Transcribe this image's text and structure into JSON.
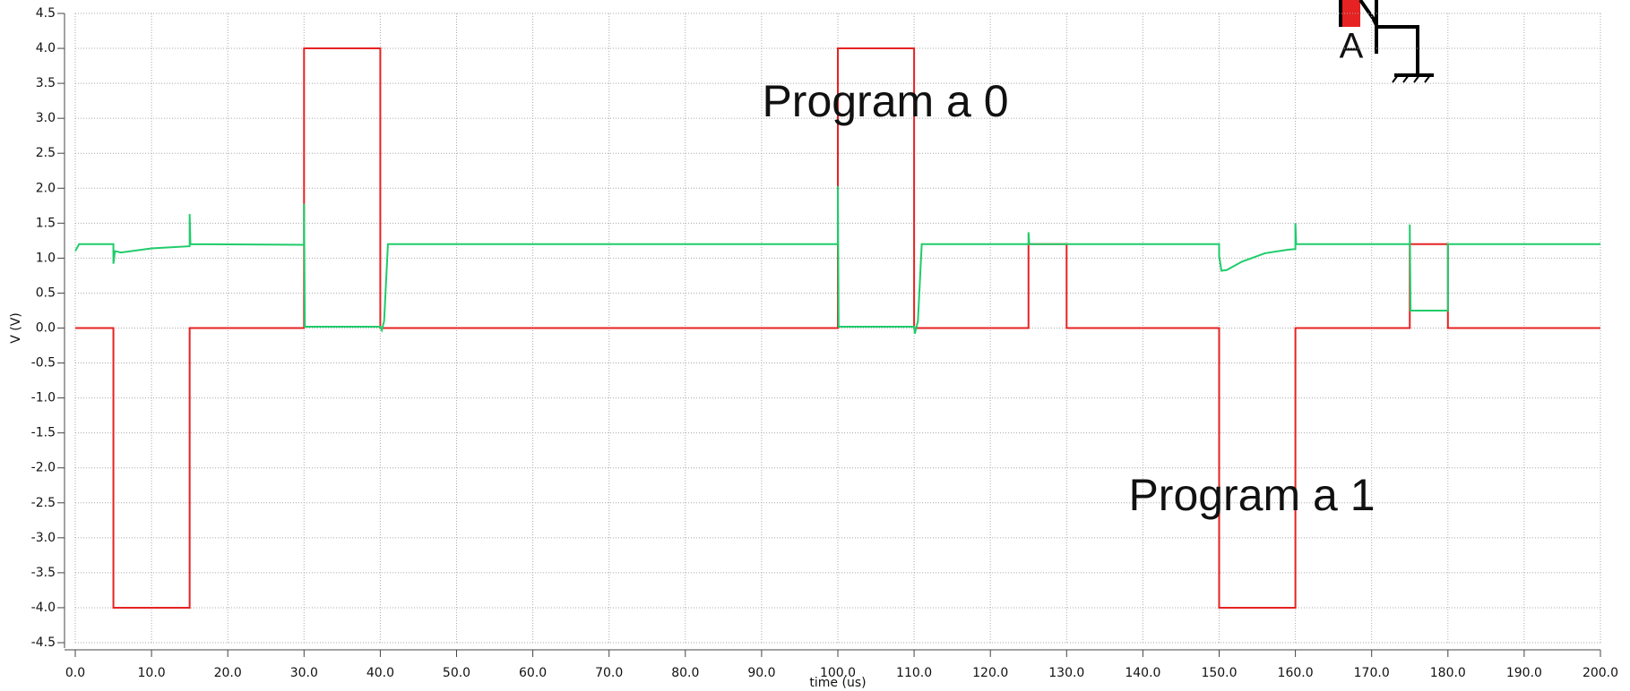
{
  "chart_data": {
    "type": "line",
    "x_label": "time (us)",
    "y_label": "V (V)",
    "annotations": [
      "Program a 0",
      "Program a 1"
    ],
    "icon_label": "A",
    "xlim": [
      0,
      200
    ],
    "ylim": [
      -4.5,
      4.5
    ],
    "grid": true,
    "xticks": [
      {
        "value": 0,
        "label": "0.0"
      },
      {
        "value": 10,
        "label": "10.0"
      },
      {
        "value": 20,
        "label": "20.0"
      },
      {
        "value": 30,
        "label": "30.0"
      },
      {
        "value": 40,
        "label": "40.0"
      },
      {
        "value": 50,
        "label": "50.0"
      },
      {
        "value": 60,
        "label": "60.0"
      },
      {
        "value": 70,
        "label": "70.0"
      },
      {
        "value": 80,
        "label": "80.0"
      },
      {
        "value": 90,
        "label": "90.0"
      },
      {
        "value": 100,
        "label": "100.0"
      },
      {
        "value": 110,
        "label": "110.0"
      },
      {
        "value": 120,
        "label": "120.0"
      },
      {
        "value": 130,
        "label": "130.0"
      },
      {
        "value": 140,
        "label": "140.0"
      },
      {
        "value": 150,
        "label": "150.0"
      },
      {
        "value": 160,
        "label": "160.0"
      },
      {
        "value": 170,
        "label": "170.0"
      },
      {
        "value": 180,
        "label": "180.0"
      },
      {
        "value": 190,
        "label": "190.0"
      },
      {
        "value": 200,
        "label": "200.0"
      }
    ],
    "yticks": [
      4.5,
      {
        "value": 4,
        "label": "4.0"
      },
      3.5,
      {
        "value": 3,
        "label": "3.0"
      },
      2.5,
      {
        "value": 2,
        "label": "2.0"
      },
      1.5,
      {
        "value": 1,
        "label": "1.0"
      },
      0.5,
      {
        "value": 0,
        "label": "0.0"
      },
      -0.5,
      {
        "value": -1,
        "label": "-1.0"
      },
      -1.5,
      {
        "value": -2,
        "label": "-2.0"
      },
      -2.5,
      {
        "value": -3,
        "label": "-3.0"
      },
      -3.5,
      {
        "value": -4,
        "label": "-4.0"
      },
      -4.5
    ],
    "series": [
      {
        "color": "#e62222",
        "x": [
          0,
          5,
          5,
          15,
          15,
          30,
          30,
          40,
          40,
          100,
          100,
          110,
          110,
          125,
          125,
          130,
          130,
          150,
          150,
          160,
          160,
          175,
          175,
          180,
          180,
          200
        ],
        "values": [
          0,
          0,
          -4,
          -4,
          0,
          0,
          4,
          4,
          0,
          0,
          4,
          4,
          0,
          0,
          1.2,
          1.2,
          0,
          0,
          -4,
          -4,
          0,
          0,
          1.2,
          1.2,
          0,
          0
        ]
      },
      {
        "color": "#1fcc6a",
        "x": [
          0,
          0.5,
          5,
          5,
          5.2,
          6,
          10,
          15,
          15,
          15.1,
          30,
          30,
          30.1,
          40,
          40.2,
          40.5,
          41,
          100,
          100,
          100.1,
          110,
          110.1,
          110.5,
          111,
          125,
          125,
          125.1,
          150,
          150,
          150.3,
          151,
          153,
          156,
          159,
          160,
          160,
          160.1,
          175,
          175,
          175.1,
          180,
          180,
          200
        ],
        "values": [
          1.1,
          1.2,
          1.2,
          0.92,
          1.1,
          1.08,
          1.14,
          1.17,
          1.63,
          1.2,
          1.19,
          1.78,
          0.02,
          0.02,
          -0.03,
          0.1,
          1.2,
          1.2,
          2.03,
          0.02,
          0.02,
          -0.08,
          0.1,
          1.2,
          1.2,
          1.37,
          1.2,
          1.2,
          1.03,
          0.82,
          0.83,
          0.95,
          1.07,
          1.12,
          1.13,
          1.5,
          1.2,
          1.2,
          1.48,
          0.25,
          0.25,
          1.2,
          1.2
        ]
      }
    ]
  }
}
